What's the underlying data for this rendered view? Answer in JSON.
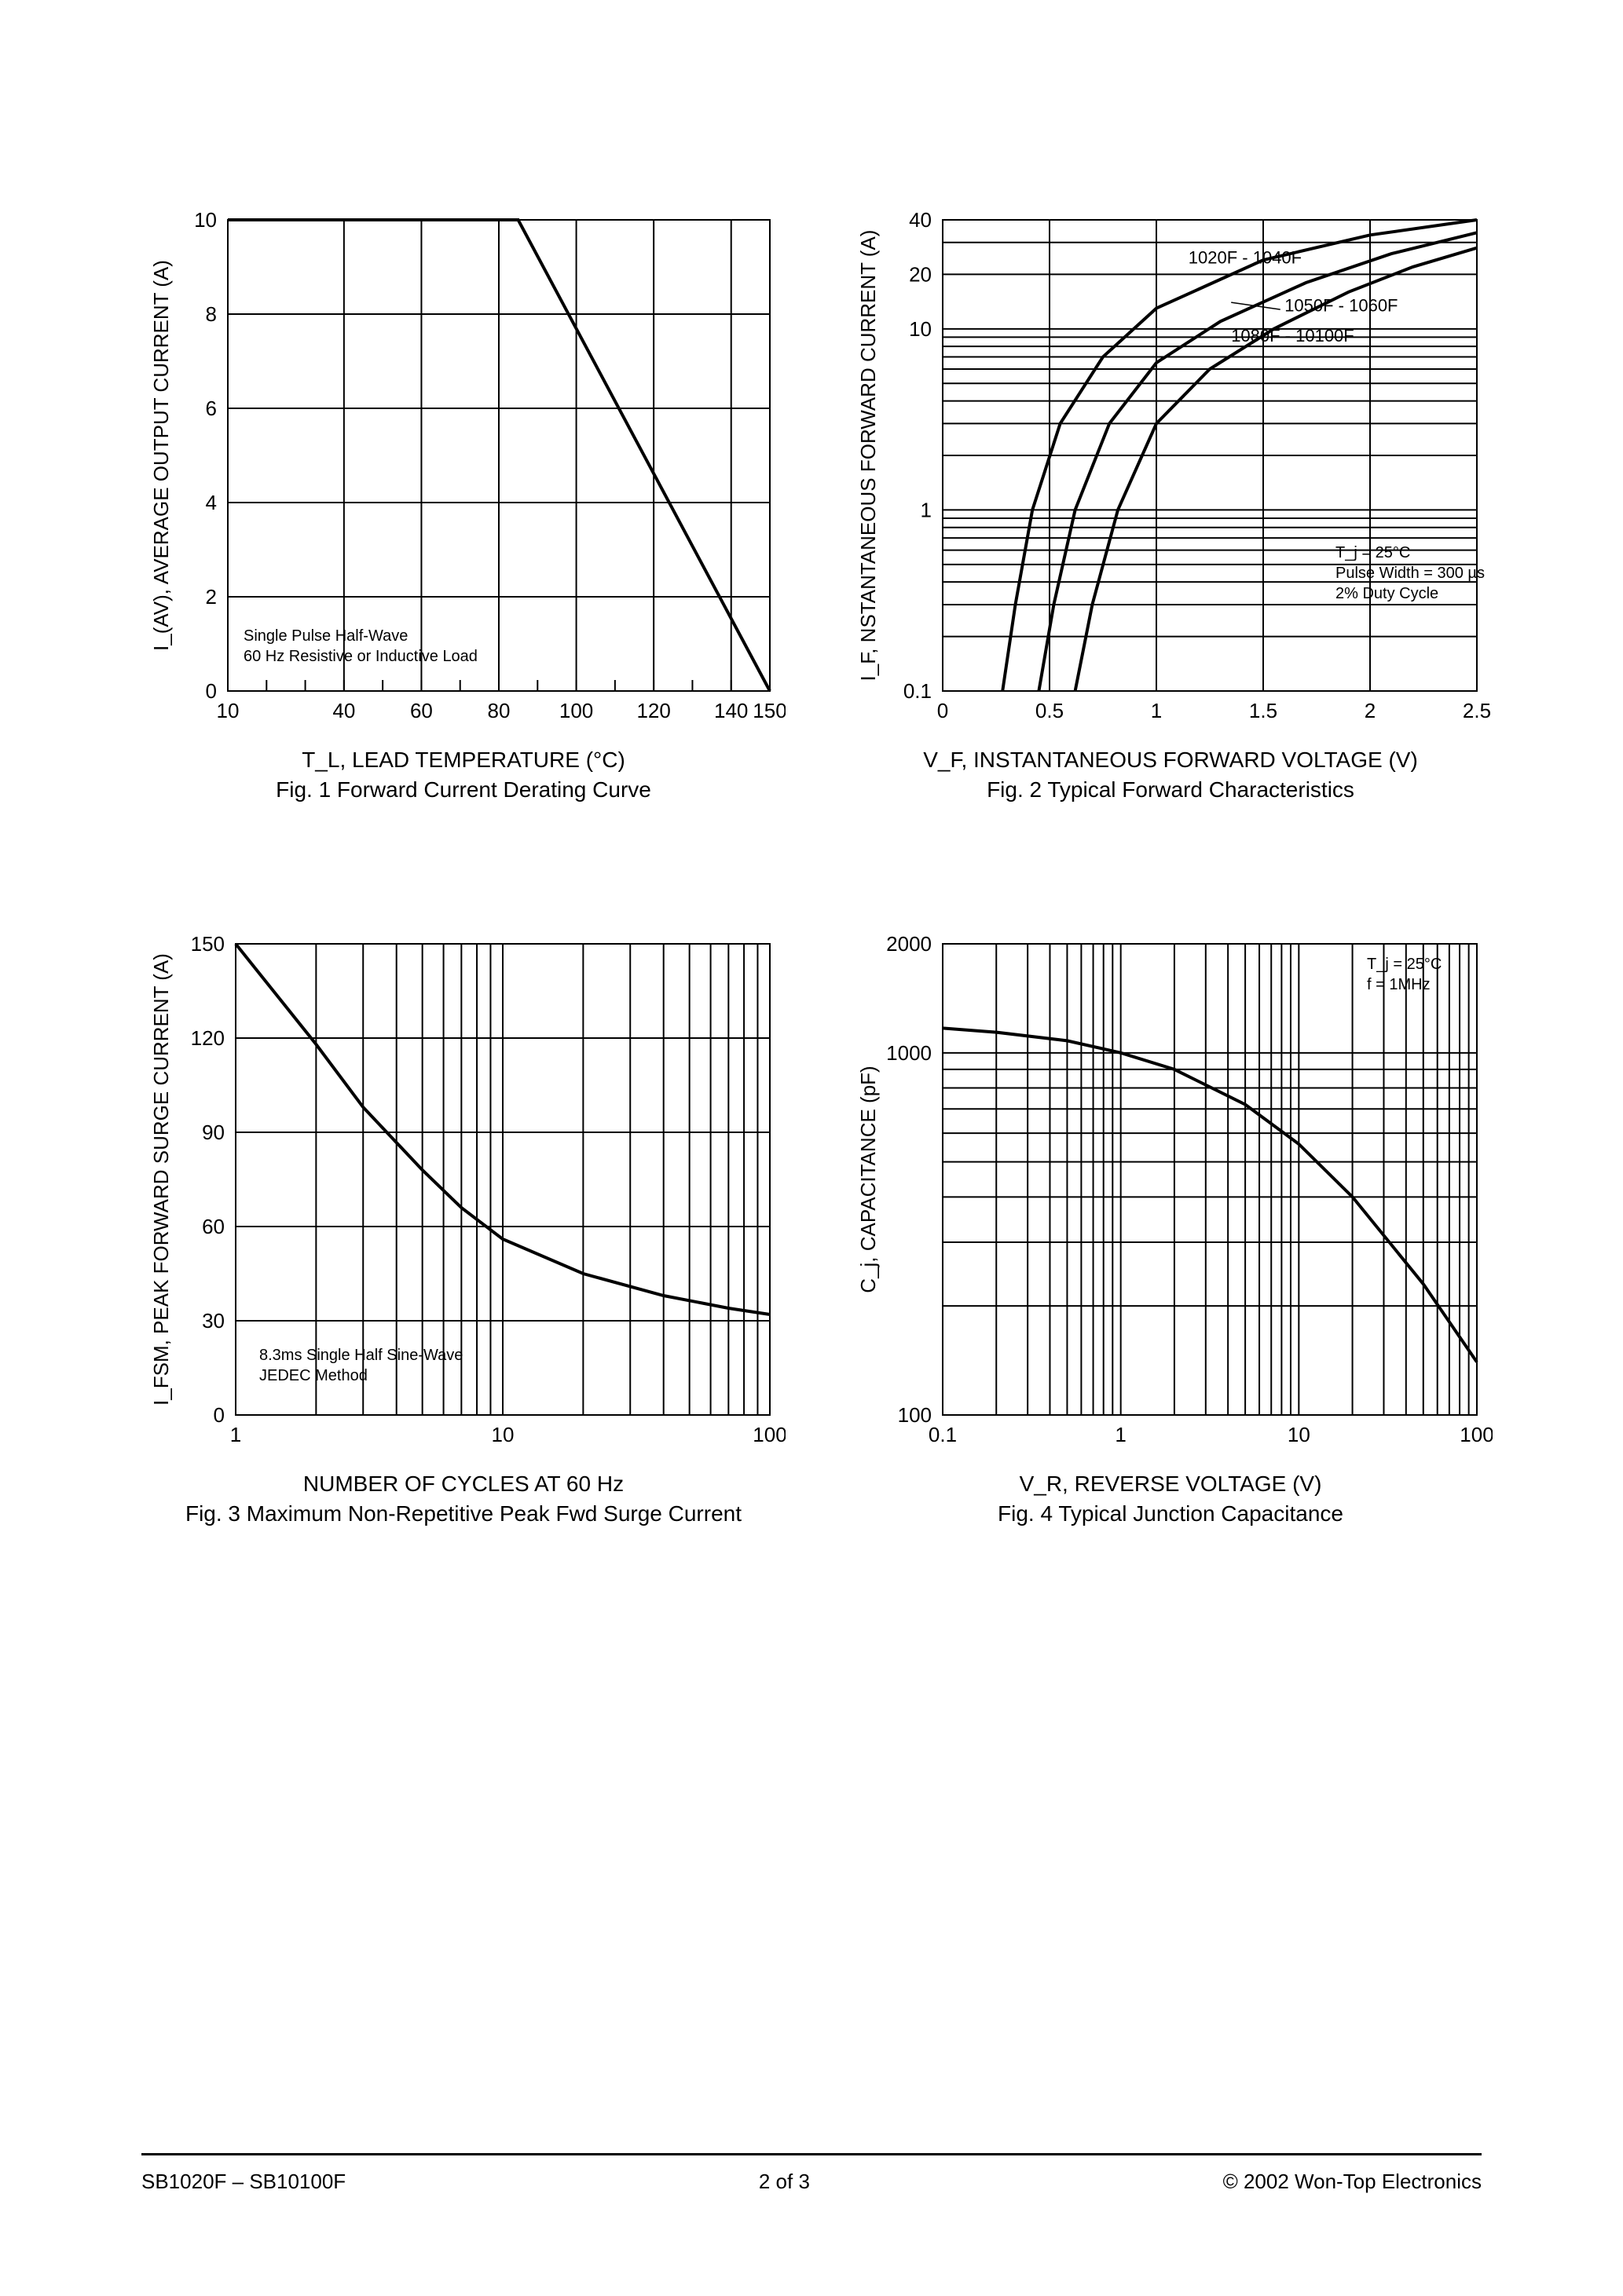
{
  "page": {
    "footer_left": "SB1020F – SB10100F",
    "footer_center": "2 of 3",
    "footer_right": "© 2002 Won-Top Electronics"
  },
  "fig1": {
    "type": "line",
    "caption": "Fig. 1  Forward Current Derating Curve",
    "xlabel": "T_L, LEAD TEMPERATURE (°C)",
    "ylabel": "I_(AV), AVERAGE OUTPUT CURRENT (A)",
    "xlim": [
      10,
      150
    ],
    "ylim": [
      0,
      10
    ],
    "xticks": [
      10,
      40,
      60,
      80,
      100,
      120,
      140,
      150
    ],
    "yticks": [
      0,
      2,
      4,
      6,
      8,
      10
    ],
    "x_scale": "linear",
    "y_scale": "linear",
    "note": "Single Pulse Half-Wave\n60 Hz Resistive or Inductive Load",
    "line_width": 4,
    "line_color": "#000000",
    "grid_color": "#000000",
    "background_color": "#ffffff",
    "series": [
      {
        "points": [
          [
            10,
            10
          ],
          [
            85,
            10
          ],
          [
            150,
            0
          ]
        ]
      }
    ]
  },
  "fig2": {
    "type": "line",
    "caption": "Fig. 2  Typical Forward Characteristics",
    "xlabel": "V_F, INSTANTANEOUS FORWARD VOLTAGE (V)",
    "ylabel": "I_F, NSTANTANEOUS FORWARD CURRENT (A)",
    "xlim": [
      0,
      2.5
    ],
    "ylim": [
      0.1,
      40
    ],
    "xticks": [
      0,
      0.5,
      1.0,
      1.5,
      2.0,
      2.5
    ],
    "yticks": [
      0.1,
      1,
      10,
      20,
      40
    ],
    "x_scale": "linear",
    "y_scale": "log",
    "line_width": 4,
    "line_color": "#000000",
    "grid_color": "#000000",
    "background_color": "#ffffff",
    "note": "T_j =  25°C\nPulse Width =  300 µs\n2% Duty Cycle",
    "curve_labels": [
      "1020F - 1040F",
      "1050F - 1060F",
      "1080F - 10100F"
    ],
    "series": [
      {
        "label": "1020F - 1040F",
        "points": [
          [
            0.28,
            0.1
          ],
          [
            0.34,
            0.3
          ],
          [
            0.42,
            1
          ],
          [
            0.55,
            3
          ],
          [
            0.75,
            7
          ],
          [
            1.0,
            13
          ],
          [
            1.5,
            24
          ],
          [
            2.0,
            33
          ],
          [
            2.5,
            40
          ]
        ]
      },
      {
        "label": "1050F - 1060F",
        "points": [
          [
            0.45,
            0.1
          ],
          [
            0.52,
            0.3
          ],
          [
            0.62,
            1
          ],
          [
            0.78,
            3
          ],
          [
            1.0,
            6.5
          ],
          [
            1.3,
            11
          ],
          [
            1.7,
            18
          ],
          [
            2.1,
            26
          ],
          [
            2.5,
            34
          ]
        ]
      },
      {
        "label": "1080F - 10100F",
        "points": [
          [
            0.62,
            0.1
          ],
          [
            0.7,
            0.3
          ],
          [
            0.82,
            1
          ],
          [
            1.0,
            3
          ],
          [
            1.25,
            6
          ],
          [
            1.55,
            10
          ],
          [
            1.9,
            16
          ],
          [
            2.2,
            22
          ],
          [
            2.5,
            28
          ]
        ]
      }
    ]
  },
  "fig3": {
    "type": "line",
    "caption": "Fig. 3  Maximum Non-Repetitive Peak Fwd Surge Current",
    "xlabel": "NUMBER OF CYCLES AT 60 Hz",
    "ylabel": "I_FSM, PEAK FORWARD SURGE CURRENT (A)",
    "xlim": [
      1,
      100
    ],
    "ylim": [
      0,
      150
    ],
    "xticks": [
      1,
      10,
      100
    ],
    "yticks": [
      0,
      30,
      60,
      90,
      120,
      150
    ],
    "x_scale": "log",
    "y_scale": "linear",
    "line_width": 4,
    "line_color": "#000000",
    "grid_color": "#000000",
    "background_color": "#ffffff",
    "note": "8.3ms Single Half Sine-Wave\nJEDEC Method",
    "series": [
      {
        "points": [
          [
            1,
            150
          ],
          [
            2,
            118
          ],
          [
            3,
            98
          ],
          [
            5,
            78
          ],
          [
            7,
            66
          ],
          [
            10,
            56
          ],
          [
            20,
            45
          ],
          [
            40,
            38
          ],
          [
            70,
            34
          ],
          [
            100,
            32
          ]
        ]
      }
    ]
  },
  "fig4": {
    "type": "line",
    "caption": "Fig. 4  Typical Junction Capacitance",
    "xlabel": "V_R, REVERSE VOLTAGE (V)",
    "ylabel": "C_j, CAPACITANCE (pF)",
    "xlim": [
      0.1,
      100
    ],
    "ylim": [
      100,
      2000
    ],
    "xticks": [
      0.1,
      1.0,
      10,
      100
    ],
    "yticks": [
      100,
      1000,
      2000
    ],
    "x_scale": "log",
    "y_scale": "log",
    "line_width": 4,
    "line_color": "#000000",
    "grid_color": "#000000",
    "background_color": "#ffffff",
    "note": "T_j =  25°C\nf =  1MHz",
    "series": [
      {
        "points": [
          [
            0.1,
            1170
          ],
          [
            0.2,
            1140
          ],
          [
            0.5,
            1080
          ],
          [
            1,
            1000
          ],
          [
            2,
            900
          ],
          [
            5,
            720
          ],
          [
            10,
            560
          ],
          [
            20,
            400
          ],
          [
            50,
            230
          ],
          [
            100,
            140
          ]
        ]
      }
    ]
  }
}
